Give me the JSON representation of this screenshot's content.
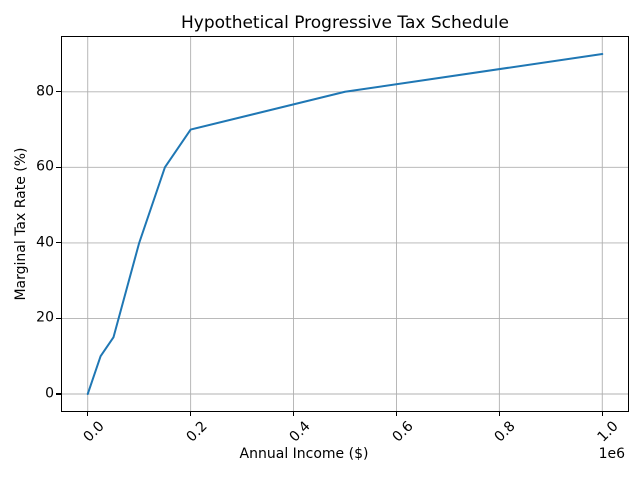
{
  "chart_data": {
    "type": "line",
    "title": "Hypothetical Progressive Tax Schedule",
    "xlabel": "Annual Income ($)",
    "ylabel": "Marginal Tax Rate (%)",
    "x_offset_text": "1e6",
    "x": [
      0,
      25000,
      50000,
      100000,
      150000,
      200000,
      500000,
      1000000
    ],
    "y": [
      0,
      10,
      15,
      40,
      60,
      70,
      80,
      90
    ],
    "xlim": [
      -50000,
      1050000
    ],
    "ylim": [
      -4.5,
      94.5
    ],
    "xticks": {
      "values": [
        0,
        200000,
        400000,
        600000,
        800000,
        1000000
      ],
      "labels": [
        "0.0",
        "0.2",
        "0.4",
        "0.6",
        "0.8",
        "1.0"
      ]
    },
    "yticks": {
      "values": [
        0,
        20,
        40,
        60,
        80
      ],
      "labels": [
        "0",
        "20",
        "40",
        "60",
        "80"
      ]
    },
    "grid": true,
    "legend": null,
    "line_color": "#1f77b4",
    "grid_color": "#b0b0b0",
    "spine_color": "#000000",
    "background_color": "#ffffff"
  }
}
